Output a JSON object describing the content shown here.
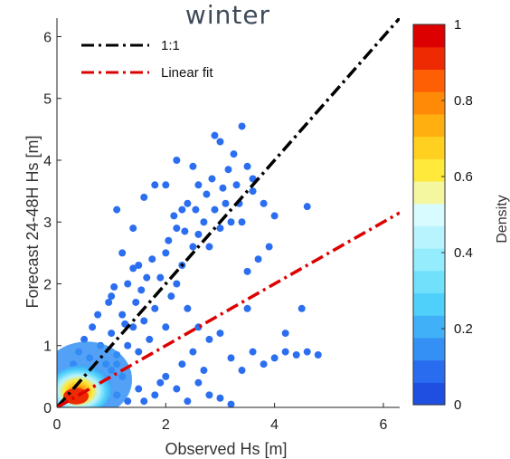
{
  "chart_data": {
    "type": "scatter",
    "title": "winter",
    "xlabel": "Observed Hs [m]",
    "ylabel": "Forecast 24-48H  Hs [m]",
    "xlim": [
      0,
      6.3
    ],
    "ylim": [
      0,
      6.3
    ],
    "xticks": [
      0,
      2,
      4,
      6
    ],
    "yticks": [
      0,
      1,
      2,
      3,
      4,
      5,
      6
    ],
    "grid": false,
    "legend_position": "top-left",
    "lines": [
      {
        "name": "1:1",
        "slope": 1.0,
        "intercept": 0.0,
        "color": "#000000",
        "style": "dash-dot"
      },
      {
        "name": "Linear fit",
        "slope": 0.5,
        "intercept": 0.0,
        "color": "#dd0000",
        "style": "dash-dot"
      }
    ],
    "points": [
      [
        0.15,
        0.12
      ],
      [
        0.25,
        0.2
      ],
      [
        0.3,
        0.35
      ],
      [
        0.35,
        0.15
      ],
      [
        0.45,
        0.3
      ],
      [
        0.5,
        0.2
      ],
      [
        0.55,
        0.45
      ],
      [
        0.6,
        0.3
      ],
      [
        0.7,
        0.55
      ],
      [
        0.8,
        0.4
      ],
      [
        0.9,
        0.7
      ],
      [
        1.0,
        0.6
      ],
      [
        1.1,
        0.85
      ],
      [
        1.2,
        0.5
      ],
      [
        0.4,
        0.6
      ],
      [
        0.6,
        0.8
      ],
      [
        0.8,
        1.0
      ],
      [
        0.5,
        1.1
      ],
      [
        1.0,
        1.2
      ],
      [
        1.3,
        1.0
      ],
      [
        1.4,
        1.3
      ],
      [
        1.5,
        0.9
      ],
      [
        1.2,
        1.5
      ],
      [
        1.6,
        1.4
      ],
      [
        1.8,
        1.6
      ],
      [
        1.0,
        1.8
      ],
      [
        1.3,
        2.0
      ],
      [
        1.5,
        2.3
      ],
      [
        1.4,
        2.25
      ],
      [
        2.2,
        2.0
      ],
      [
        2.0,
        1.3
      ],
      [
        1.7,
        1.1
      ],
      [
        2.5,
        2.6
      ],
      [
        2.6,
        2.8
      ],
      [
        2.7,
        3.0
      ],
      [
        2.8,
        2.6
      ],
      [
        2.9,
        3.2
      ],
      [
        3.0,
        2.9
      ],
      [
        3.1,
        3.3
      ],
      [
        3.2,
        3.0
      ],
      [
        2.9,
        4.4
      ],
      [
        3.0,
        4.3
      ],
      [
        3.4,
        4.55
      ],
      [
        3.3,
        3.6
      ],
      [
        3.5,
        3.9
      ],
      [
        3.6,
        3.7
      ],
      [
        2.6,
        3.6
      ],
      [
        2.5,
        3.9
      ],
      [
        2.3,
        3.2
      ],
      [
        2.0,
        3.6
      ],
      [
        2.0,
        2.5
      ],
      [
        2.2,
        2.9
      ],
      [
        3.4,
        3.0
      ],
      [
        3.6,
        3.5
      ],
      [
        3.8,
        3.3
      ],
      [
        4.0,
        3.1
      ],
      [
        4.6,
        3.25
      ],
      [
        3.7,
        2.4
      ],
      [
        3.9,
        2.6
      ],
      [
        3.5,
        2.2
      ],
      [
        2.4,
        1.6
      ],
      [
        2.6,
        1.3
      ],
      [
        2.8,
        1.1
      ],
      [
        3.0,
        1.2
      ],
      [
        3.2,
        0.8
      ],
      [
        3.4,
        0.6
      ],
      [
        3.6,
        0.9
      ],
      [
        3.8,
        0.7
      ],
      [
        4.0,
        0.8
      ],
      [
        4.2,
        0.9
      ],
      [
        4.4,
        0.85
      ],
      [
        4.6,
        0.9
      ],
      [
        4.8,
        0.85
      ],
      [
        3.5,
        1.6
      ],
      [
        4.5,
        1.6
      ],
      [
        4.2,
        1.2
      ],
      [
        1.5,
        0.3
      ],
      [
        1.8,
        0.2
      ],
      [
        2.0,
        0.5
      ],
      [
        2.2,
        0.3
      ],
      [
        2.4,
        0.1
      ],
      [
        2.6,
        0.4
      ],
      [
        2.8,
        0.2
      ],
      [
        3.0,
        0.15
      ],
      [
        3.2,
        0.05
      ],
      [
        1.6,
        0.1
      ],
      [
        1.9,
        0.4
      ],
      [
        2.3,
        0.7
      ],
      [
        2.5,
        0.9
      ],
      [
        2.7,
        0.6
      ],
      [
        1.1,
        0.2
      ],
      [
        1.3,
        0.1
      ],
      [
        0.9,
        0.15
      ],
      [
        1.2,
        2.5
      ],
      [
        1.4,
        2.9
      ],
      [
        1.6,
        3.4
      ],
      [
        1.8,
        3.6
      ],
      [
        1.1,
        3.2
      ],
      [
        2.2,
        4.0
      ],
      [
        2.4,
        3.3
      ],
      [
        1.9,
        2.1
      ],
      [
        2.1,
        1.8
      ],
      [
        2.3,
        2.3
      ],
      [
        0.7,
        0.2
      ],
      [
        0.9,
        0.45
      ],
      [
        1.1,
        0.7
      ],
      [
        0.4,
        0.9
      ],
      [
        0.3,
        0.7
      ],
      [
        0.2,
        0.5
      ],
      [
        0.65,
        1.3
      ],
      [
        0.75,
        1.5
      ],
      [
        0.95,
        1.7
      ],
      [
        1.05,
        1.95
      ],
      [
        1.25,
        1.35
      ],
      [
        1.45,
        1.7
      ],
      [
        1.55,
        1.9
      ],
      [
        1.65,
        2.1
      ],
      [
        1.75,
        2.4
      ],
      [
        2.05,
        2.7
      ],
      [
        2.15,
        3.1
      ],
      [
        2.35,
        2.85
      ],
      [
        2.55,
        3.2
      ],
      [
        2.75,
        3.45
      ],
      [
        2.85,
        3.7
      ],
      [
        3.05,
        3.55
      ],
      [
        3.15,
        3.85
      ],
      [
        3.25,
        4.1
      ],
      [
        3.35,
        3.3
      ]
    ],
    "colorbar": {
      "label": "Density",
      "ticks": [
        "0",
        "0.2",
        "0.4",
        "0.6",
        "0.8",
        "1"
      ],
      "range": [
        0,
        1
      ],
      "colors": [
        "#1f4fe0",
        "#2a6cf0",
        "#3590f5",
        "#40b0f8",
        "#4fd0fa",
        "#70e0fb",
        "#94ecfc",
        "#b8f4fd",
        "#d8fbff",
        "#f5f7a0",
        "#ffe93a",
        "#ffd020",
        "#ffb010",
        "#ff8a08",
        "#ff5f04",
        "#ee2a02",
        "#dd0000"
      ],
      "tick_values": [
        0,
        0.2,
        0.4,
        0.6,
        0.8,
        1.0
      ]
    },
    "point_color": "#2c6ef0"
  }
}
